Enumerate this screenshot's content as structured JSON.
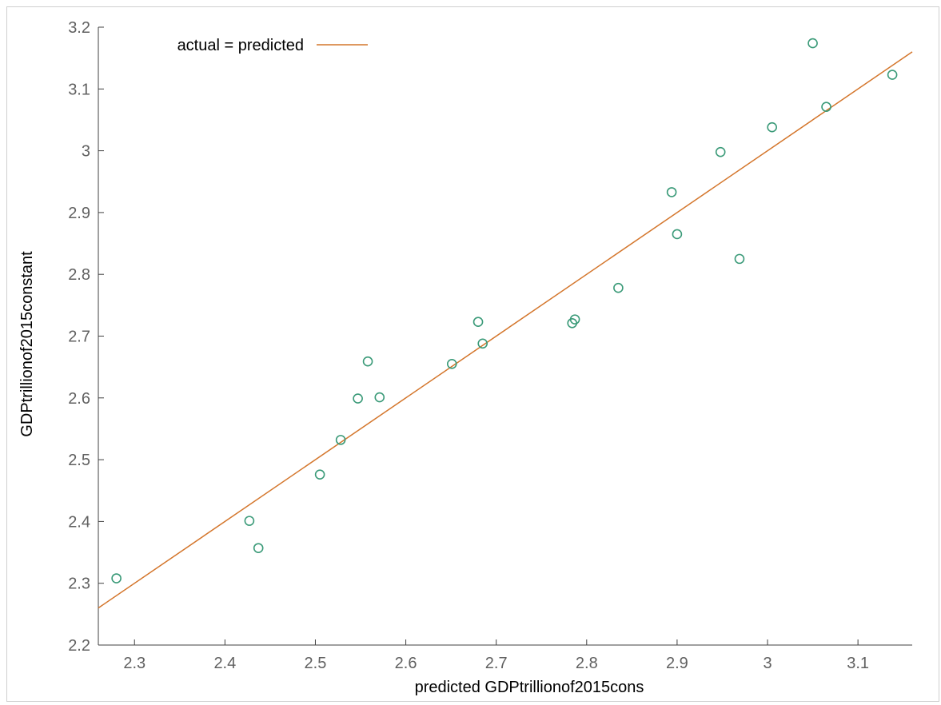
{
  "chart_data": {
    "type": "scatter",
    "title": "",
    "xlabel": "predicted GDPtrillionof2015cons",
    "ylabel": "GDPtrillionof2015constant",
    "xlim": [
      2.26,
      3.16
    ],
    "ylim": [
      2.2,
      3.2
    ],
    "xticks": [
      "2.3",
      "2.4",
      "2.5",
      "2.6",
      "2.7",
      "2.8",
      "2.9",
      "3",
      "3.1"
    ],
    "yticks": [
      "2.2",
      "2.3",
      "2.4",
      "2.5",
      "2.6",
      "2.7",
      "2.8",
      "2.9",
      "3",
      "3.1",
      "3.2"
    ],
    "grid": false,
    "legend_position": "top-left",
    "colors": {
      "points": "#3a9a78",
      "line": "#d4762c",
      "axis": "#404040"
    },
    "series": [
      {
        "kind": "points",
        "x": [
          2.28,
          2.427,
          2.437,
          2.505,
          2.528,
          2.547,
          2.558,
          2.571,
          2.651,
          2.68,
          2.685,
          2.784,
          2.787,
          2.835,
          2.894,
          2.9,
          2.948,
          2.969,
          3.005,
          3.05,
          3.065,
          3.138
        ],
        "y": [
          2.308,
          2.401,
          2.357,
          2.476,
          2.532,
          2.599,
          2.659,
          2.601,
          2.655,
          2.723,
          2.688,
          2.721,
          2.727,
          2.778,
          2.933,
          2.865,
          2.998,
          2.825,
          3.038,
          3.174,
          3.071,
          3.123
        ]
      },
      {
        "kind": "line",
        "name": "actual = predicted",
        "x": [
          2.26,
          3.16
        ],
        "y": [
          2.26,
          3.16
        ]
      }
    ]
  }
}
